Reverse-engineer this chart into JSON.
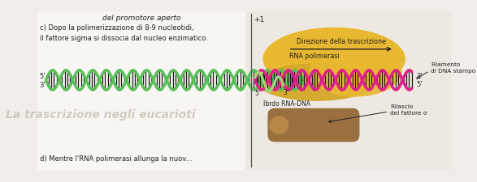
{
  "bg_left_color": "#f2ede8",
  "bg_right_color": "#e8e4de",
  "title_top": "del promotore aperto",
  "label_c": "c) Dopo la polimerizzazione di 8-9 nucleotidi,\nil fattore sigma si dissocia dal nucleo enzimatico.",
  "label_d": "d) Mentre l'RNA polimerasi allunga la nuov...",
  "plus1_label": "+1",
  "direction_label": "Direzione della trascrizione",
  "rna_pol_label": "RNA polimerasi",
  "hybrid_label": "Ibrdo RNA-DNA",
  "filamento_label": "Filamento\ndi DNA stampo",
  "rilascio_label": "Rilascio\ndel fattore σ",
  "label_5_left": "5'",
  "label_3_left": "3'",
  "label_3_right": "3'",
  "label_5_right": "5'",
  "label_5_inner": "5'",
  "label_3_inner": "3'",
  "green_dna_color": "#5abf5a",
  "pink_dna_color": "#e0208a",
  "light_green_rna_color": "#a8d870",
  "dark_color": "#222222",
  "enzyme_color": "#e8b830",
  "enzyme_color2": "#d4a828",
  "sigma_color": "#9a7040",
  "sigma_color2": "#b88848",
  "stripe_color": "#1a1a1a",
  "watermark_color": "#c0bbaa",
  "vertical_line_color": "#555555",
  "helix_lw": 2.5,
  "stripe_lw": 0.9
}
